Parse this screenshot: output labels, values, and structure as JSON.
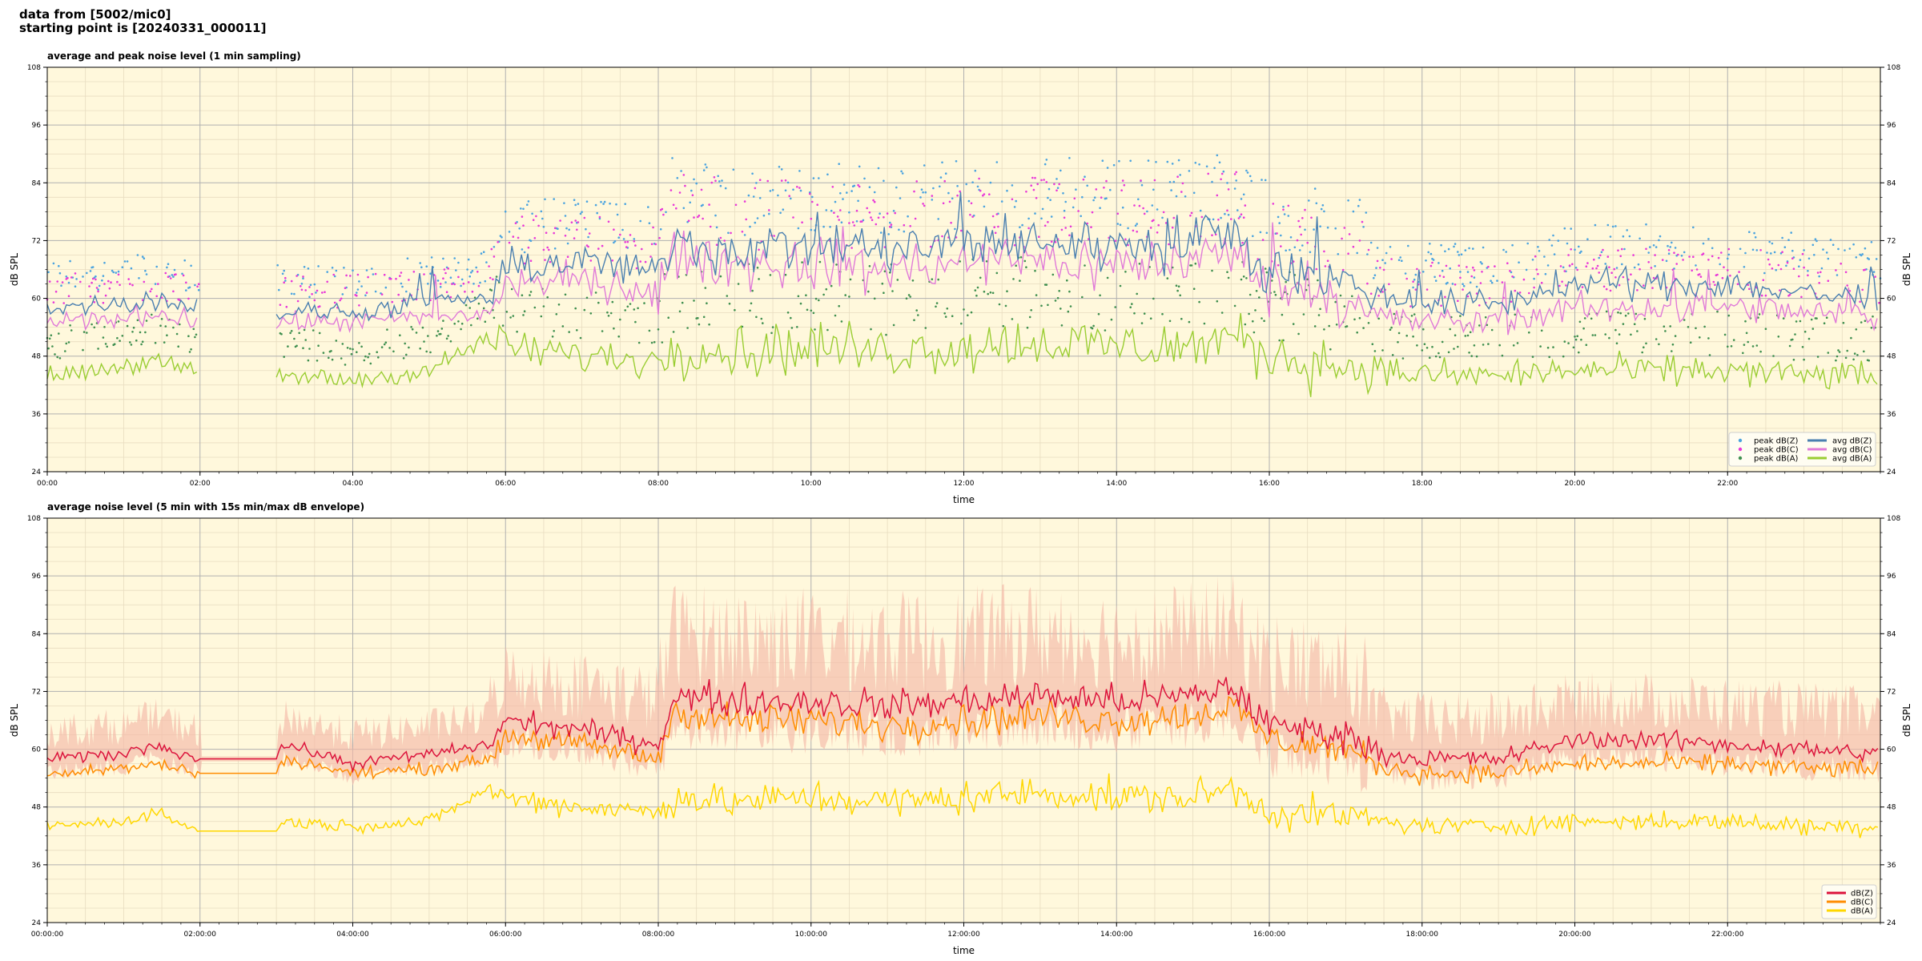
{
  "header": {
    "line1": "data from [5002/mic0]",
    "line2": "starting point is [20240331_000011]"
  },
  "colors": {
    "plot_bg": "#fff8dc",
    "grid_major": "#b0b0b0",
    "grid_minor": "#e8dcc0",
    "peak_z": "#4aa3df",
    "peak_c": "#e838d8",
    "peak_a": "#3f8f4f",
    "avg_z": "#4a7fb0",
    "avg_c": "#e07ad8",
    "avg_a": "#9acd32",
    "env": "#f4b8a8",
    "dbz": "#dc143c",
    "dbc": "#ff8c00",
    "dba": "#ffd700"
  },
  "chart_data": [
    {
      "type": "line",
      "title": "average and peak noise level (1 min sampling)",
      "xlabel": "time",
      "ylabel": "dB SPL",
      "xlim": [
        0,
        24
      ],
      "ylim": [
        24,
        108
      ],
      "y_ticks": [
        24,
        36,
        48,
        60,
        72,
        84,
        96,
        108
      ],
      "x_ticks": [
        "00:00",
        "02:00",
        "04:00",
        "06:00",
        "08:00",
        "10:00",
        "12:00",
        "14:00",
        "16:00",
        "18:00",
        "20:00",
        "22:00"
      ],
      "grid": true,
      "legend_placement": "bottom-right",
      "gap_hours": [
        2.0,
        3.0
      ],
      "legend": [
        "peak dB(Z)",
        "peak dB(C)",
        "peak dB(A)",
        "avg dB(Z)",
        "avg dB(C)",
        "avg dB(A)"
      ],
      "series": [
        {
          "name": "avg dB(Z)",
          "x": [
            0,
            1,
            1.4,
            2,
            3,
            4,
            5,
            5.8,
            6,
            7,
            8,
            8.2,
            9,
            10,
            11,
            12,
            13,
            14,
            15,
            15.5,
            16,
            17,
            17.5,
            18,
            19,
            20,
            21,
            22,
            23,
            24
          ],
          "y": [
            58,
            59,
            60,
            58,
            57,
            57,
            59,
            60,
            66,
            68,
            65,
            72,
            70,
            71,
            70,
            71,
            72,
            71,
            72,
            74,
            66,
            64,
            60,
            59,
            59,
            63,
            63,
            63,
            61,
            60
          ]
        },
        {
          "name": "avg dB(C)",
          "x": [
            0,
            1,
            1.4,
            2,
            3,
            4,
            5,
            5.8,
            6,
            7,
            8,
            8.2,
            9,
            10,
            11,
            12,
            13,
            14,
            15,
            15.5,
            16,
            17,
            17.5,
            18,
            19,
            20,
            21,
            22,
            23,
            24
          ],
          "y": [
            55,
            56,
            57,
            55,
            55,
            55,
            56,
            57,
            63,
            64,
            61,
            69,
            67,
            67,
            66,
            67,
            68,
            67,
            68,
            70,
            63,
            60,
            56,
            55,
            55,
            58,
            58,
            58,
            57,
            56
          ]
        },
        {
          "name": "avg dB(A)",
          "x": [
            0,
            1,
            1.4,
            2,
            3,
            4,
            5,
            5.8,
            6,
            7,
            8,
            8.2,
            9,
            10,
            11,
            12,
            13,
            14,
            15,
            15.5,
            16,
            17,
            17.5,
            18,
            19,
            20,
            21,
            22,
            23,
            24
          ],
          "y": [
            44,
            46,
            47,
            44,
            44,
            43,
            45,
            52,
            50,
            48,
            47,
            50,
            49,
            50,
            49,
            50,
            51,
            50,
            50,
            52,
            48,
            46,
            45,
            44,
            44,
            45,
            45,
            45,
            44,
            44
          ]
        }
      ]
    },
    {
      "type": "line",
      "title": "average noise level (5 min with 15s min/max dB envelope)",
      "xlabel": "time",
      "ylabel": "dB SPL",
      "xlim": [
        0,
        24
      ],
      "ylim": [
        24,
        108
      ],
      "y_ticks": [
        24,
        36,
        48,
        60,
        72,
        84,
        96,
        108
      ],
      "x_ticks": [
        "00:00:00",
        "02:00:00",
        "04:00:00",
        "06:00:00",
        "08:00:00",
        "10:00:00",
        "12:00:00",
        "14:00:00",
        "16:00:00",
        "18:00:00",
        "20:00:00",
        "22:00:00"
      ],
      "grid": true,
      "legend_placement": "bottom-right",
      "legend": [
        "dB(Z)",
        "dB(C)",
        "dB(A)"
      ],
      "series": [
        {
          "name": "dB(Z)",
          "x": [
            0,
            1,
            1.4,
            2,
            3,
            3.1,
            4,
            5,
            5.8,
            6,
            7,
            8,
            8.2,
            9,
            10,
            11,
            12,
            13,
            14,
            15,
            15.5,
            16,
            17,
            17.5,
            18,
            19,
            20,
            21,
            22,
            23,
            24
          ],
          "y": [
            58,
            59,
            61,
            58,
            58,
            61,
            57,
            59,
            61,
            66,
            64,
            61,
            71,
            70,
            70,
            69,
            70,
            71,
            70,
            71,
            73,
            65,
            63,
            59,
            58,
            58,
            62,
            62,
            61,
            60,
            59
          ]
        },
        {
          "name": "dB(C)",
          "x": [
            0,
            1,
            1.4,
            2,
            3,
            3.1,
            4,
            5,
            5.8,
            6,
            7,
            8,
            8.2,
            9,
            10,
            11,
            12,
            13,
            14,
            15,
            15.5,
            16,
            17,
            17.5,
            18,
            19,
            20,
            21,
            22,
            23,
            24
          ],
          "y": [
            55,
            56,
            57,
            55,
            55,
            58,
            55,
            56,
            58,
            63,
            61,
            58,
            68,
            66,
            66,
            65,
            66,
            67,
            66,
            67,
            69,
            62,
            60,
            56,
            55,
            55,
            57,
            57,
            57,
            56,
            56
          ]
        },
        {
          "name": "dB(A)",
          "x": [
            0,
            1,
            1.4,
            2,
            3,
            3.1,
            4,
            5,
            5.8,
            6,
            7,
            8,
            8.2,
            9,
            10,
            11,
            12,
            13,
            14,
            15,
            15.5,
            16,
            17,
            17.5,
            18,
            19,
            20,
            21,
            22,
            23,
            24
          ],
          "y": [
            44,
            45,
            47,
            43,
            43,
            45,
            44,
            45,
            52,
            50,
            48,
            47,
            50,
            49,
            50,
            49,
            50,
            51,
            50,
            50,
            52,
            47,
            46,
            45,
            44,
            44,
            45,
            45,
            45,
            44,
            44
          ]
        }
      ]
    }
  ]
}
